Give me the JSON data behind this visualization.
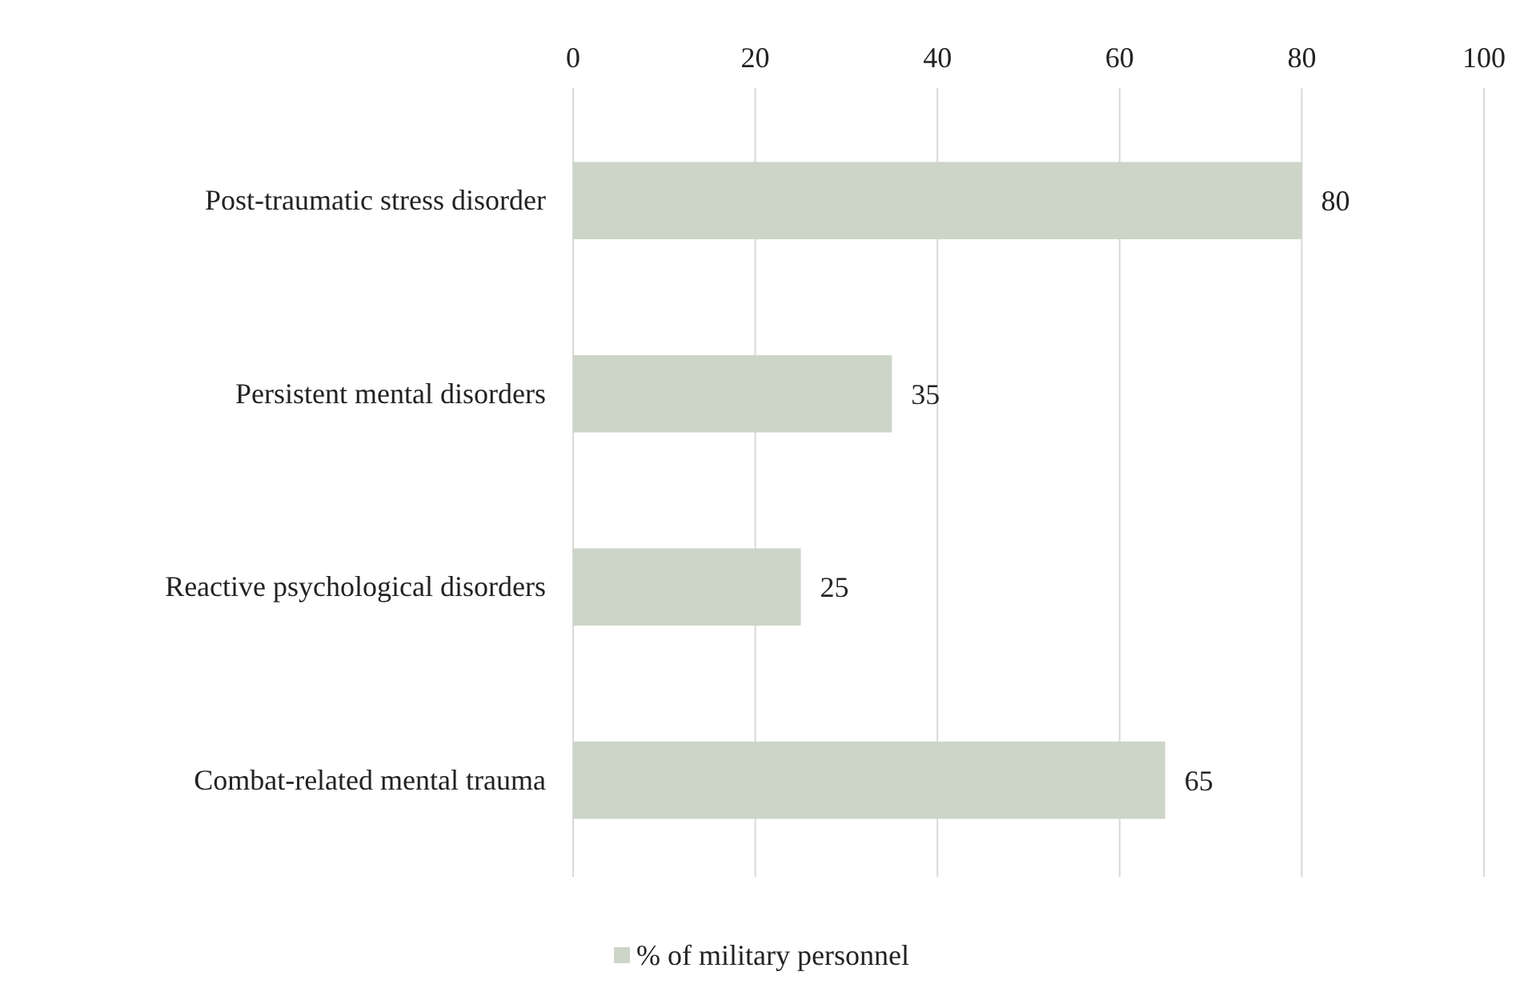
{
  "chart_data": {
    "type": "bar",
    "orientation": "horizontal",
    "categories": [
      "Post-traumatic stress disorder",
      "Persistent mental disorders",
      "Reactive psychological disorders",
      "Combat-related mental trauma"
    ],
    "series": [
      {
        "name": "% of military personnel",
        "color": "#ccd5c8",
        "values": [
          80,
          35,
          25,
          65
        ]
      }
    ],
    "xlim": [
      0,
      100
    ],
    "xticks": [
      0,
      20,
      40,
      60,
      80,
      100
    ],
    "grid": "x",
    "legend": "bottom",
    "data_labels": true
  }
}
